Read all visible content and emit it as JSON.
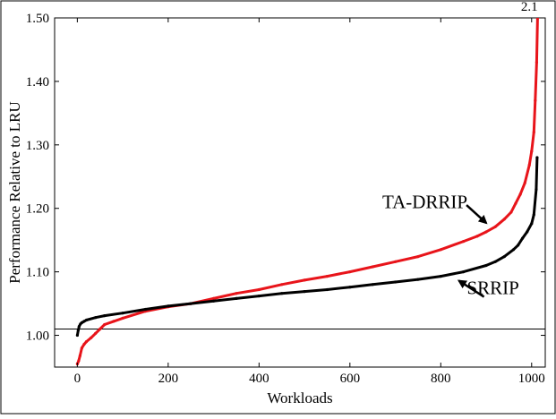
{
  "chart_data": {
    "type": "line",
    "title": "",
    "xlabel": "Workloads",
    "ylabel": "Performance Relative to LRU",
    "xlim": [
      -50,
      1030
    ],
    "ylim": [
      0.95,
      1.5
    ],
    "xticks": [
      0,
      200,
      400,
      600,
      800,
      1000
    ],
    "yticks": [
      1.0,
      1.1,
      1.2,
      1.3,
      1.4,
      1.5
    ],
    "xtick_labels": [
      "0",
      "200",
      "400",
      "600",
      "800",
      "1000"
    ],
    "ytick_labels": [
      "1.00",
      "1.10",
      "1.20",
      "1.30",
      "1.40",
      "1.50"
    ],
    "grid": false,
    "legend": "none",
    "reference_line": {
      "y": 1.01
    },
    "series": [
      {
        "name": "TA-DRRIP",
        "color": "#e8141a",
        "x": [
          0,
          3,
          6,
          10,
          15,
          20,
          30,
          40,
          50,
          60,
          80,
          100,
          150,
          200,
          250,
          300,
          350,
          400,
          450,
          500,
          550,
          600,
          650,
          700,
          750,
          800,
          850,
          880,
          900,
          920,
          940,
          955,
          965,
          975,
          985,
          995,
          1000,
          1005,
          1008,
          1011,
          1013
        ],
        "values": [
          0.955,
          0.96,
          0.968,
          0.98,
          0.986,
          0.99,
          0.996,
          1.003,
          1.01,
          1.017,
          1.022,
          1.027,
          1.038,
          1.045,
          1.05,
          1.058,
          1.066,
          1.072,
          1.08,
          1.087,
          1.093,
          1.1,
          1.108,
          1.116,
          1.124,
          1.135,
          1.148,
          1.156,
          1.163,
          1.171,
          1.183,
          1.194,
          1.208,
          1.222,
          1.24,
          1.268,
          1.29,
          1.32,
          1.37,
          1.43,
          1.5
        ]
      },
      {
        "name": "SRRIP",
        "color": "#000000",
        "x": [
          0,
          2,
          4,
          7,
          10,
          15,
          20,
          40,
          60,
          100,
          150,
          200,
          250,
          300,
          350,
          400,
          450,
          500,
          550,
          600,
          650,
          700,
          750,
          800,
          850,
          900,
          920,
          940,
          960,
          970,
          980,
          990,
          1000,
          1005,
          1010,
          1012
        ],
        "values": [
          1.0,
          1.008,
          1.014,
          1.018,
          1.02,
          1.022,
          1.024,
          1.028,
          1.031,
          1.035,
          1.041,
          1.046,
          1.05,
          1.054,
          1.058,
          1.062,
          1.066,
          1.069,
          1.072,
          1.076,
          1.08,
          1.084,
          1.088,
          1.093,
          1.1,
          1.11,
          1.116,
          1.124,
          1.135,
          1.142,
          1.153,
          1.163,
          1.176,
          1.19,
          1.23,
          1.28
        ]
      }
    ],
    "annotations": [
      {
        "text": "TA-DRRIP",
        "x": 765,
        "y": 1.2,
        "arrow_to": [
          900,
          1.177
        ]
      },
      {
        "text": "SRRIP",
        "x": 915,
        "y": 1.065,
        "arrow_to": [
          840,
          1.086
        ]
      },
      {
        "text": "2.1",
        "x": 995,
        "y": 1.51
      }
    ]
  }
}
